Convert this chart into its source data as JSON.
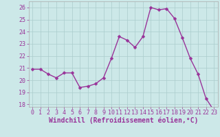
{
  "x": [
    0,
    1,
    2,
    3,
    4,
    5,
    6,
    7,
    8,
    9,
    10,
    11,
    12,
    13,
    14,
    15,
    16,
    17,
    18,
    19,
    20,
    21,
    22,
    23
  ],
  "y": [
    20.9,
    20.9,
    20.5,
    20.2,
    20.6,
    20.6,
    19.4,
    19.5,
    19.7,
    20.2,
    21.8,
    23.6,
    23.3,
    22.7,
    23.6,
    26.0,
    25.8,
    25.9,
    25.1,
    23.5,
    21.8,
    20.5,
    18.5,
    17.5
  ],
  "line_color": "#993399",
  "marker": "D",
  "marker_size": 2.5,
  "bg_color": "#cce8e8",
  "grid_color": "#aacccc",
  "xlabel": "Windchill (Refroidissement éolien,°C)",
  "ylim": [
    17.8,
    26.5
  ],
  "yticks": [
    18,
    19,
    20,
    21,
    22,
    23,
    24,
    25,
    26
  ],
  "xlim": [
    -0.5,
    23.5
  ],
  "xticks": [
    0,
    1,
    2,
    3,
    4,
    5,
    6,
    7,
    8,
    9,
    10,
    11,
    12,
    13,
    14,
    15,
    16,
    17,
    18,
    19,
    20,
    21,
    22,
    23
  ],
  "tick_fontsize": 6,
  "xlabel_fontsize": 7,
  "line_width": 1.0,
  "label_color": "#993399",
  "spine_color": "#aaaaaa"
}
